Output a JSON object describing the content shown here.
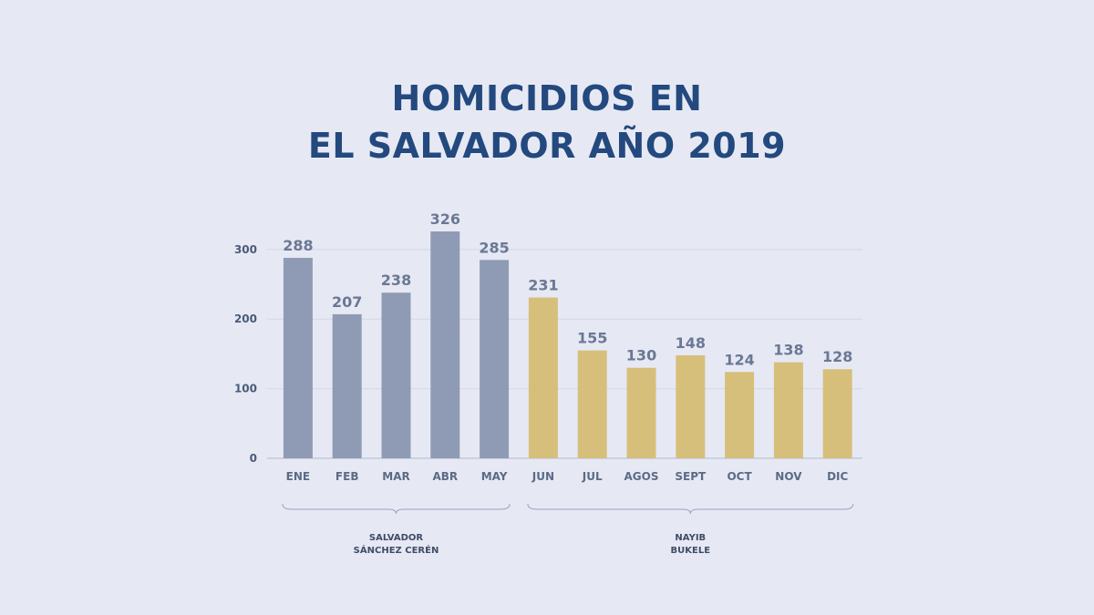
{
  "chart_data": {
    "type": "bar",
    "title_lines": [
      "HOMICIDIOS EN",
      "EL SALVADOR AÑO 2019"
    ],
    "categories": [
      "ENE",
      "FEB",
      "MAR",
      "ABR",
      "MAY",
      "JUN",
      "JUL",
      "AGOS",
      "SEPT",
      "OCT",
      "NOV",
      "DIC"
    ],
    "values": [
      288,
      207,
      238,
      326,
      285,
      231,
      155,
      130,
      148,
      124,
      138,
      128
    ],
    "ylim": [
      0,
      326
    ],
    "yticks": [
      0,
      100,
      200,
      300
    ],
    "grid": true,
    "groups": [
      {
        "label_lines": [
          "SALVADOR",
          "SÁNCHEZ CERÉN"
        ],
        "start": 0,
        "end": 4,
        "color": "#8f9bb5"
      },
      {
        "label_lines": [
          "NAYIB",
          "BUKELE"
        ],
        "start": 5,
        "end": 11,
        "color": "#d6bf7a"
      }
    ]
  }
}
